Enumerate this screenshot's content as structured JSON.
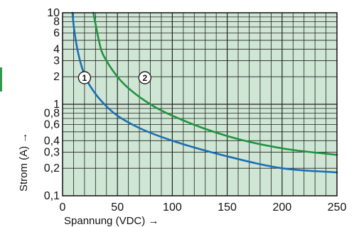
{
  "chart_data": {
    "type": "line",
    "xlabel": "Spannung (VDC) →",
    "ylabel": "Strom (A) →",
    "xlim": [
      0,
      250
    ],
    "ylim": [
      0.1,
      10
    ],
    "y_scale": "log",
    "grid": true,
    "x_ticks": [
      {
        "value": 0,
        "label": "0"
      },
      {
        "value": 50,
        "label": "50"
      },
      {
        "value": 100,
        "label": "100"
      },
      {
        "value": 150,
        "label": "150"
      },
      {
        "value": 200,
        "label": "200"
      },
      {
        "value": 250,
        "label": "250"
      }
    ],
    "y_ticks": [
      {
        "value": 0.1,
        "label": "0,1"
      },
      {
        "value": 0.2,
        "label": "0,2"
      },
      {
        "value": 0.3,
        "label": "0,3"
      },
      {
        "value": 0.4,
        "label": "0,4"
      },
      {
        "value": 0.6,
        "label": "0,6"
      },
      {
        "value": 0.8,
        "label": "0,8"
      },
      {
        "value": 1,
        "label": "1"
      },
      {
        "value": 2,
        "label": "2"
      },
      {
        "value": 3,
        "label": "3"
      },
      {
        "value": 4,
        "label": "4"
      },
      {
        "value": 6,
        "label": "6"
      },
      {
        "value": 8,
        "label": "8"
      },
      {
        "value": 10,
        "label": "10"
      }
    ],
    "series": [
      {
        "marker": "1",
        "marker_point": [
          20,
          1.95
        ],
        "color": "#1a6eb5",
        "points": [
          [
            9,
            10
          ],
          [
            10,
            7.5
          ],
          [
            12,
            5
          ],
          [
            15,
            3.3
          ],
          [
            20,
            2.1
          ],
          [
            30,
            1.3
          ],
          [
            40,
            0.95
          ],
          [
            50,
            0.75
          ],
          [
            70,
            0.55
          ],
          [
            100,
            0.4
          ],
          [
            150,
            0.27
          ],
          [
            200,
            0.2
          ],
          [
            250,
            0.18
          ]
        ]
      },
      {
        "marker": "2",
        "marker_point": [
          75,
          1.95
        ],
        "color": "#1e9440",
        "points": [
          [
            28,
            10
          ],
          [
            35,
            4
          ],
          [
            40,
            3
          ],
          [
            50,
            2
          ],
          [
            60,
            1.5
          ],
          [
            80,
            1
          ],
          [
            100,
            0.75
          ],
          [
            150,
            0.45
          ],
          [
            200,
            0.33
          ],
          [
            250,
            0.28
          ]
        ]
      }
    ],
    "colors": {
      "plot_background": "#cfe6d4",
      "grid": "#222222",
      "side_accent": "#2e9a4a"
    }
  }
}
